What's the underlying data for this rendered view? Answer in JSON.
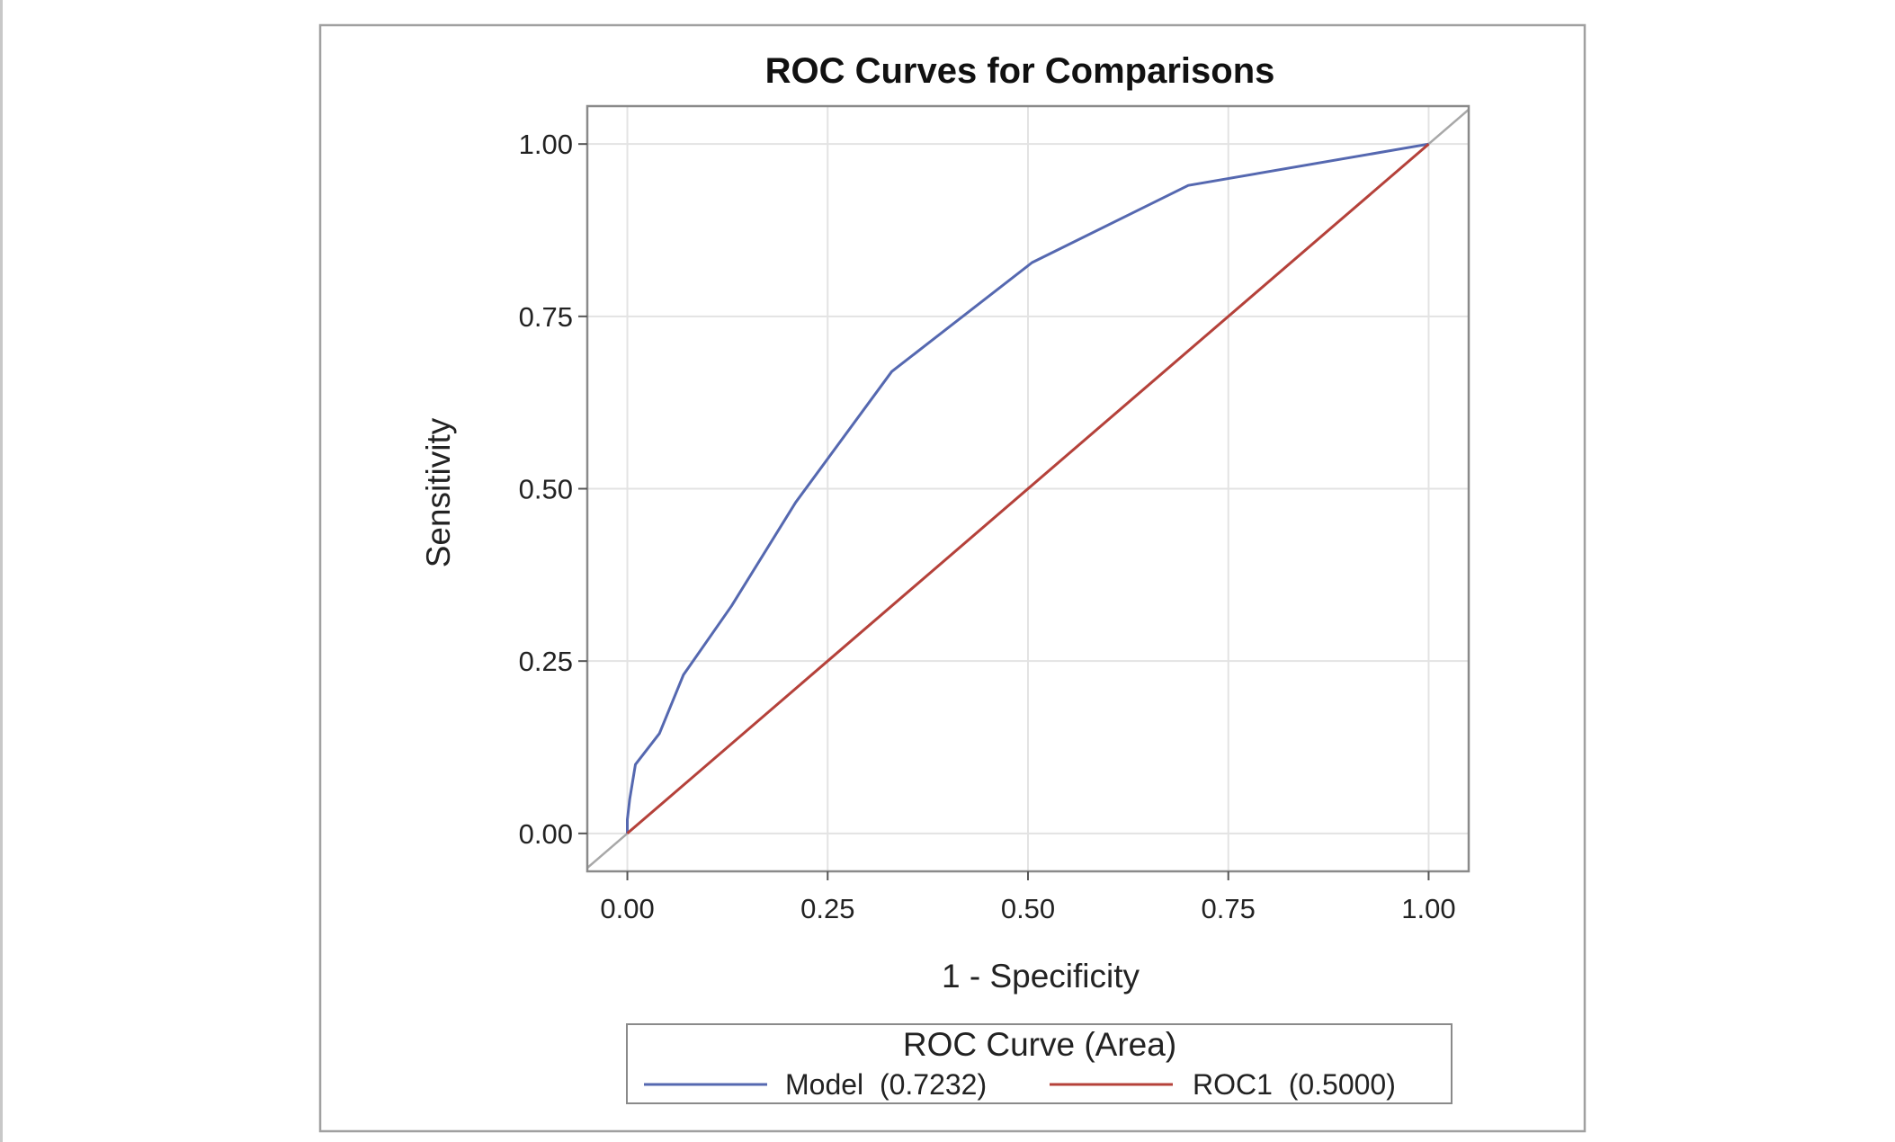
{
  "colors": {
    "model_line": "#5568b0",
    "roc1_line": "#b5413a",
    "diagonal": "#a8a8a8",
    "grid": "#e3e3e3",
    "frame": "#8a8a8a",
    "outer_border": "#a0a0a0"
  },
  "chart_data": {
    "type": "line",
    "title": "ROC Curves for Comparisons",
    "xlabel": "1 - Specificity",
    "ylabel": "Sensitivity",
    "xlim": [
      -0.05,
      1.05
    ],
    "ylim": [
      -0.055,
      1.055
    ],
    "x_ticks": [
      0.0,
      0.25,
      0.5,
      0.75,
      1.0
    ],
    "y_ticks": [
      0.0,
      0.25,
      0.5,
      0.75,
      1.0
    ],
    "x_tick_labels": [
      "0.00",
      "0.25",
      "0.50",
      "0.75",
      "1.00"
    ],
    "y_tick_labels": [
      "0.00",
      "0.25",
      "0.50",
      "0.75",
      "1.00"
    ],
    "grid": true,
    "reference_line": "diagonal",
    "series": [
      {
        "name": "Model",
        "area": "0.7232",
        "color_key": "model_line",
        "points": [
          [
            0.0,
            0.0
          ],
          [
            0.0,
            0.02
          ],
          [
            0.003,
            0.05
          ],
          [
            0.01,
            0.1
          ],
          [
            0.04,
            0.145
          ],
          [
            0.07,
            0.23
          ],
          [
            0.13,
            0.33
          ],
          [
            0.21,
            0.48
          ],
          [
            0.33,
            0.67
          ],
          [
            0.505,
            0.828
          ],
          [
            0.7,
            0.94
          ],
          [
            1.0,
            1.0
          ]
        ]
      },
      {
        "name": "ROC1",
        "area": "0.5000",
        "color_key": "roc1_line",
        "points": [
          [
            0.0,
            0.0
          ],
          [
            1.0,
            1.0
          ]
        ]
      }
    ],
    "legend": {
      "title": "ROC Curve (Area)",
      "position": "bottom",
      "entries": [
        "Model  (0.7232)",
        "ROC1  (0.5000)"
      ]
    }
  }
}
